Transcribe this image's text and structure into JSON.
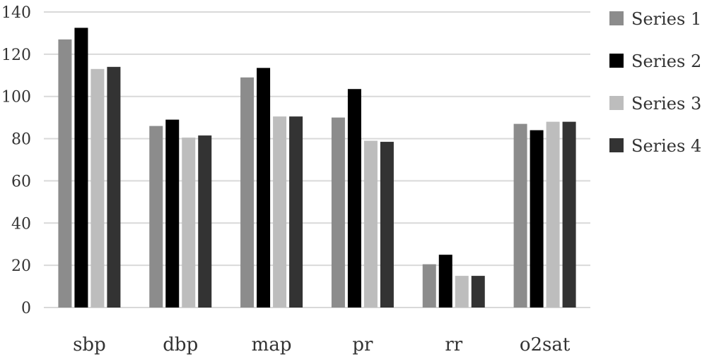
{
  "chart_data": {
    "type": "bar",
    "title": "",
    "xlabel": "",
    "ylabel": "",
    "ylim": [
      0,
      140
    ],
    "yticks": [
      0,
      20,
      40,
      60,
      80,
      100,
      120,
      140
    ],
    "grid": true,
    "legend_position": "right",
    "categories": [
      "sbp",
      "dbp",
      "map",
      "pr",
      "rr",
      "o2sat"
    ],
    "series": [
      {
        "name": "Series 1",
        "color": "#8c8c8c",
        "values": [
          127,
          86,
          109,
          90,
          20.5,
          87
        ]
      },
      {
        "name": "Series 2",
        "color": "#000000",
        "values": [
          132.5,
          89,
          113.5,
          103.5,
          25,
          84
        ]
      },
      {
        "name": "Series 3",
        "color": "#bdbdbd",
        "values": [
          113,
          80.5,
          90.5,
          79,
          15,
          88
        ]
      },
      {
        "name": "Series 4",
        "color": "#333333",
        "values": [
          114,
          81.5,
          90.5,
          78.5,
          15,
          88
        ]
      }
    ]
  }
}
